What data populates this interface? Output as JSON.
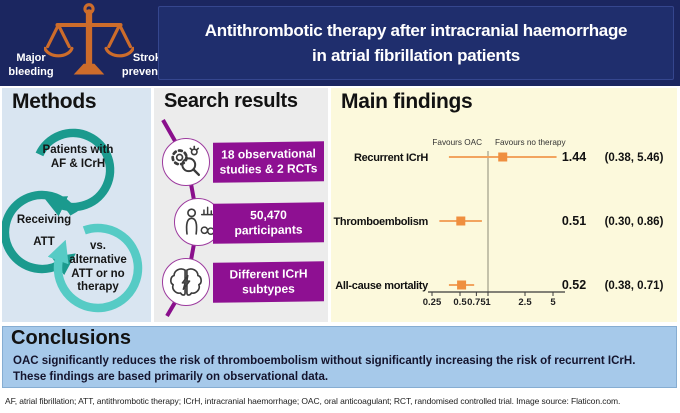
{
  "header": {
    "title_line1": "Antithrombotic therapy after intracranial haemorrhage",
    "title_line2": "in atrial fibrillation patients",
    "scale_left_label": "Major bleeding",
    "scale_right_label": "Stroke prevention"
  },
  "methods": {
    "heading": "Methods",
    "steps": [
      {
        "label": "Patients with AF & ICrH"
      },
      {
        "label": "Receiving ATT"
      },
      {
        "label": "vs. alternative ATT or no therapy"
      }
    ]
  },
  "search_results": {
    "heading": "Search results",
    "items": [
      {
        "icon": "research-magnifier-icon",
        "label": "18 observational studies & 2 RCTs"
      },
      {
        "icon": "participants-icon",
        "label": "50,470 participants"
      },
      {
        "icon": "brain-icon",
        "label": "Different ICrH subtypes"
      }
    ]
  },
  "main_findings": {
    "heading": "Main findings"
  },
  "chart_data": {
    "type": "forest",
    "title": "Main findings",
    "x_scale": "log",
    "x_ticks": [
      0.25,
      0.5,
      0.75,
      1,
      2.5,
      5
    ],
    "xlim": [
      0.25,
      5.46
    ],
    "reference_value": 1,
    "favours_left": "Favours OAC",
    "favours_right": "Favours no therapy",
    "rows": [
      {
        "label": "Recurrent ICrH",
        "estimate": 1.44,
        "ci_low": 0.38,
        "ci_high": 5.46,
        "value_text": "1.44",
        "ci_text": "(0.38, 5.46)"
      },
      {
        "label": "Thromboembolism",
        "estimate": 0.51,
        "ci_low": 0.3,
        "ci_high": 0.86,
        "value_text": "0.51",
        "ci_text": "(0.30, 0.86)"
      },
      {
        "label": "All-cause mortality",
        "estimate": 0.52,
        "ci_low": 0.38,
        "ci_high": 0.71,
        "value_text": "0.52",
        "ci_text": "(0.38, 0.71)"
      }
    ],
    "marker_color": "#ef8f3f",
    "line_color": "#f2a45f"
  },
  "conclusions": {
    "heading": "Conclusions",
    "text": "OAC significantly reduces the risk of thromboembolism  without significantly increasing the risk of recurrent ICrH. These findings are based primarily on observational data."
  },
  "footer": {
    "text": "AF, atrial fibrillation; ATT, antithrombotic therapy; ICrH, intracranial haemorrhage; OAC, oral anticoagulant; RCT, randomised controlled trial. Image source: Flaticon.com."
  },
  "palette": {
    "header_navy": "#1b2660",
    "scale_orange": "#cd6c2b",
    "teal_dark": "#1b9a8e",
    "teal_light": "#56cbc5",
    "purple": "#8e1092",
    "methods_bg": "#d9e5f1",
    "search_bg": "#ececec",
    "findings_bg": "#fcf9dc",
    "conclusions_bg": "#a6c9ea"
  }
}
